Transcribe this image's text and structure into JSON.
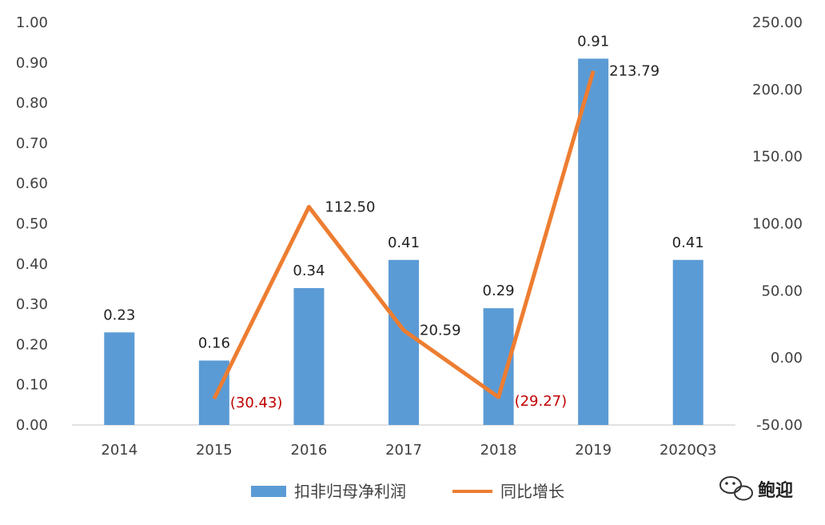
{
  "chart_data": {
    "type": "bar",
    "categories": [
      "2014",
      "2015",
      "2016",
      "2017",
      "2018",
      "2019",
      "2020Q3"
    ],
    "series": [
      {
        "name": "扣非归母净利润",
        "type": "bar",
        "axis": "left",
        "color": "#5b9bd5",
        "values": [
          0.23,
          0.16,
          0.34,
          0.41,
          0.29,
          0.91,
          0.41
        ],
        "labels": [
          "0.23",
          "0.16",
          "0.34",
          "0.41",
          "0.29",
          "0.91",
          "0.41"
        ]
      },
      {
        "name": "同比增长",
        "type": "line",
        "axis": "right",
        "color": "#ed7d31",
        "values": [
          null,
          -30.43,
          112.5,
          20.59,
          -29.27,
          213.79,
          null
        ],
        "labels": [
          "",
          "(30.43)",
          "112.50",
          "20.59",
          "(29.27)",
          "213.79",
          ""
        ]
      }
    ],
    "y_left": {
      "ylim": [
        0,
        1.0
      ],
      "ticks": [
        "0.00",
        "0.10",
        "0.20",
        "0.30",
        "0.40",
        "0.50",
        "0.60",
        "0.70",
        "0.80",
        "0.90",
        "1.00"
      ]
    },
    "y_right": {
      "ylim": [
        -50,
        250
      ],
      "ticks": [
        "-50.00",
        "0.00",
        "50.00",
        "100.00",
        "150.00",
        "200.00",
        "250.00"
      ]
    },
    "grid": false,
    "legend_position": "bottom-center",
    "negative_label_color": "#c00000"
  },
  "watermark": {
    "text": "鲍迎",
    "icon": "wechat-icon"
  }
}
